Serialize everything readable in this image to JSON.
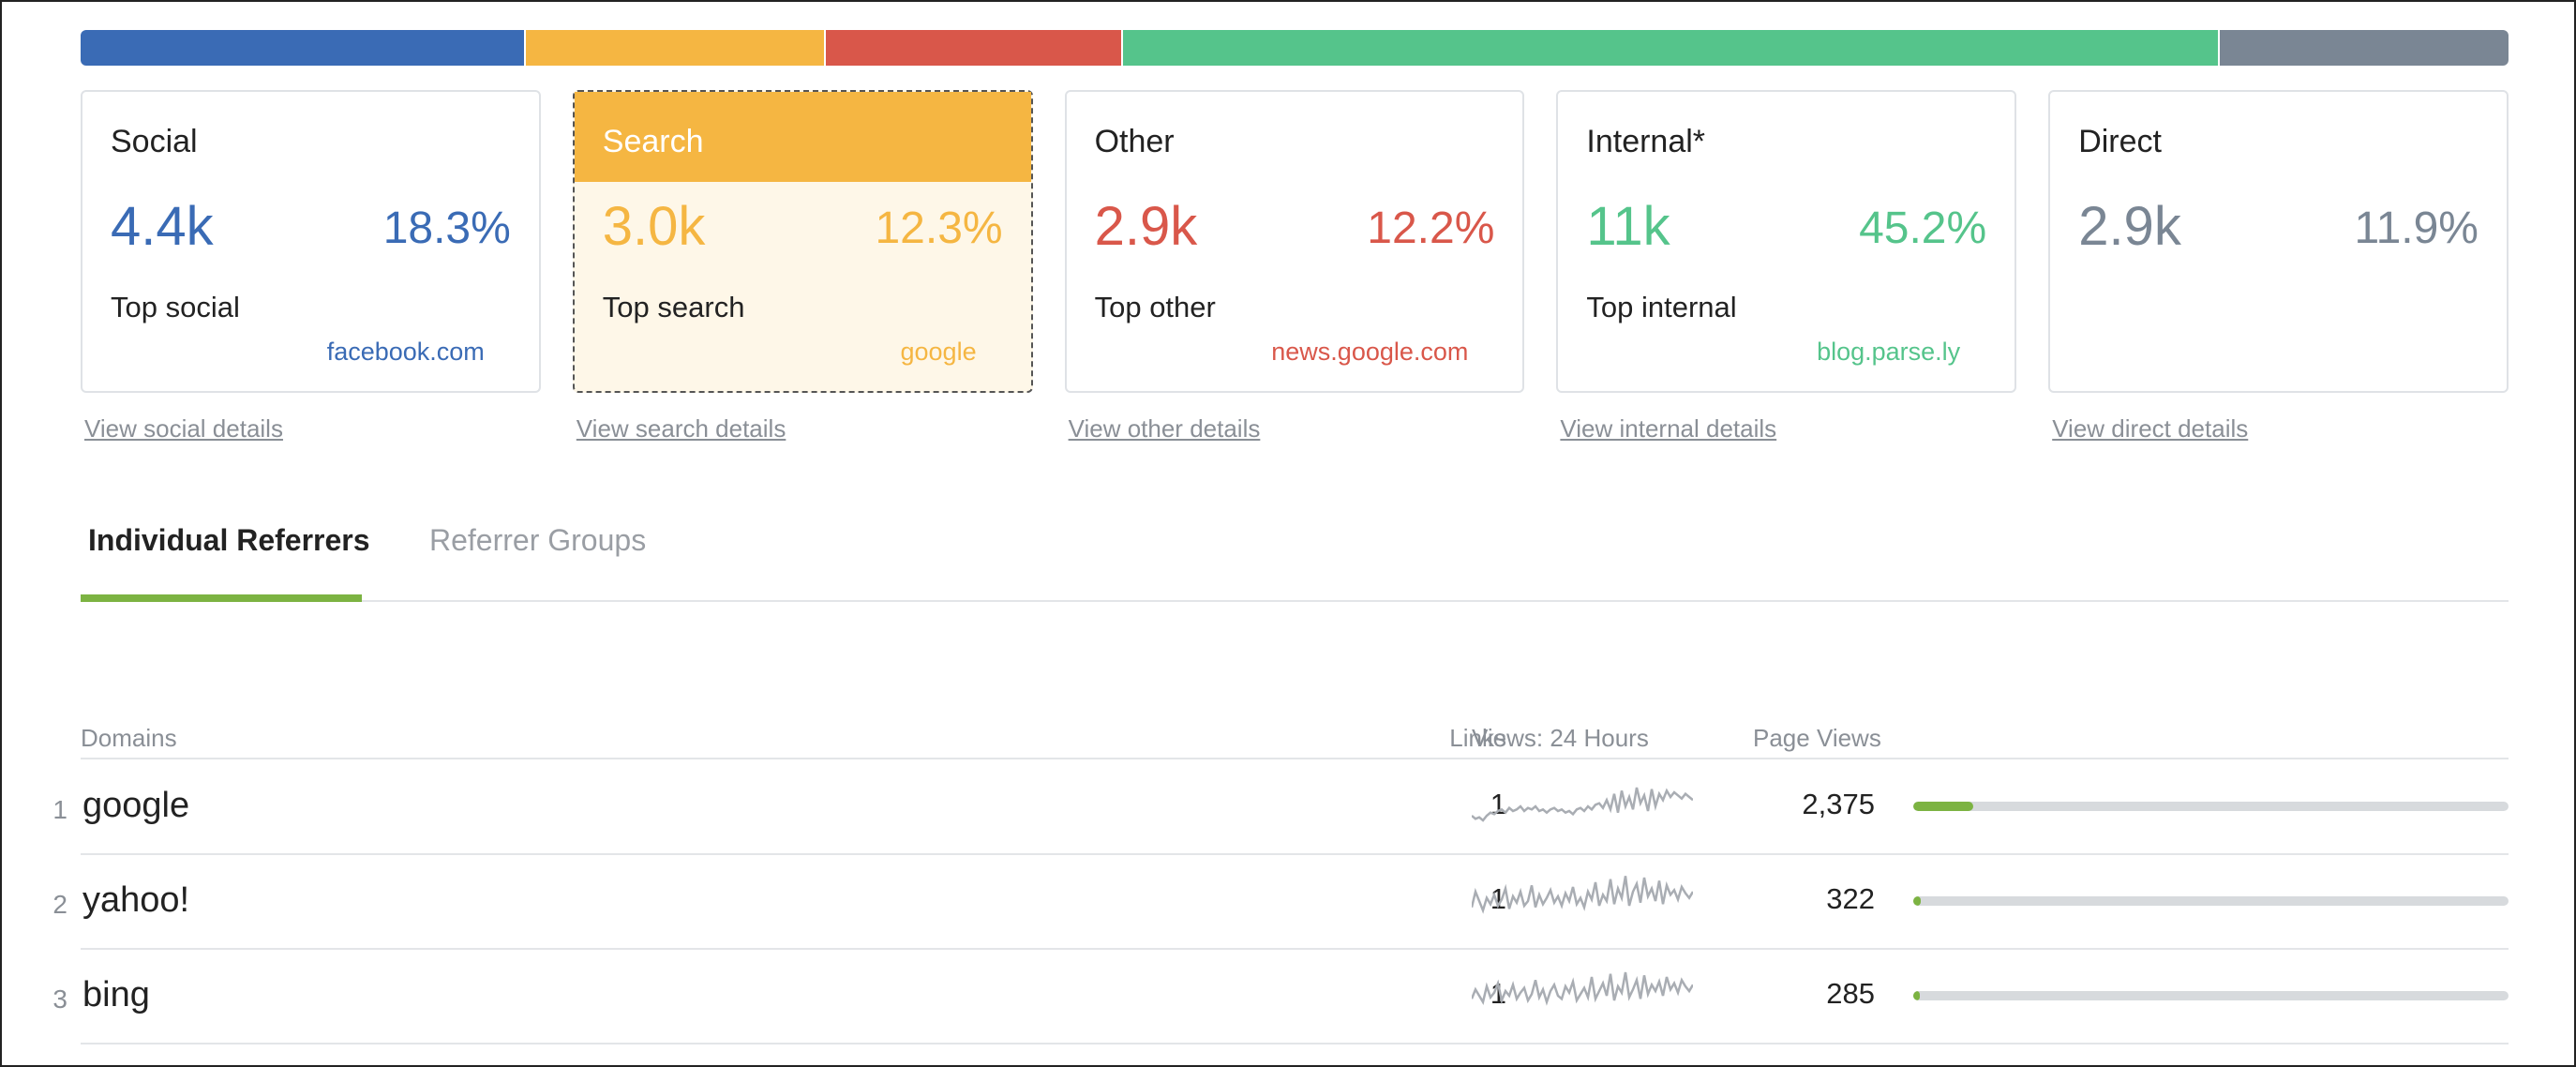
{
  "colors": {
    "social": "#3a6bb5",
    "search": "#f5b642",
    "other": "#d9574a",
    "internal": "#55c48b",
    "direct": "#7a8694",
    "accent_green": "#7cb342"
  },
  "distribution": [
    {
      "key": "social",
      "pct": 18.3
    },
    {
      "key": "search",
      "pct": 12.3
    },
    {
      "key": "other",
      "pct": 12.2
    },
    {
      "key": "internal",
      "pct": 45.2
    },
    {
      "key": "direct",
      "pct": 11.9
    }
  ],
  "cards": [
    {
      "key": "social",
      "title": "Social",
      "value": "4.4k",
      "pct": "18.3%",
      "top_label": "Top social",
      "top_value": "facebook.com",
      "details_link": "View social details"
    },
    {
      "key": "search",
      "title": "Search",
      "value": "3.0k",
      "pct": "12.3%",
      "top_label": "Top search",
      "top_value": "google",
      "details_link": "View search details"
    },
    {
      "key": "other",
      "title": "Other",
      "value": "2.9k",
      "pct": "12.2%",
      "top_label": "Top other",
      "top_value": "news.google.com",
      "details_link": "View other details"
    },
    {
      "key": "internal",
      "title": "Internal*",
      "value": "11k",
      "pct": "45.2%",
      "top_label": "Top internal",
      "top_value": "blog.parse.ly",
      "details_link": "View internal details"
    },
    {
      "key": "direct",
      "title": "Direct",
      "value": "2.9k",
      "pct": "11.9%",
      "top_label": "",
      "top_value": "",
      "details_link": "View direct details"
    }
  ],
  "active_card": "search",
  "tabs": {
    "individual": "Individual Referrers",
    "groups": "Referrer Groups",
    "active": "individual"
  },
  "table": {
    "headers": {
      "domains": "Domains",
      "links": "Links",
      "views24": "Views: 24 Hours",
      "pageviews": "Page Views"
    },
    "rows": [
      {
        "rank": "1",
        "domain": "google",
        "links": "1",
        "pageviews": "2,375",
        "share": 0.1,
        "spark": [
          6,
          4,
          5,
          3,
          6,
          8,
          7,
          9,
          10,
          8,
          11,
          9,
          10,
          12,
          9,
          11,
          10,
          12,
          9,
          10,
          8,
          10,
          11,
          9,
          10,
          8,
          9,
          7,
          10,
          11,
          9,
          12,
          10,
          13,
          14,
          11,
          16,
          10,
          20,
          8,
          22,
          12,
          18,
          10,
          24,
          14,
          19,
          9,
          23,
          12,
          20,
          16,
          22,
          18,
          21,
          19,
          17,
          20,
          18,
          16
        ]
      },
      {
        "rank": "2",
        "domain": "yahoo!",
        "links": "1",
        "pageviews": "322",
        "share": 0.013,
        "spark": [
          8,
          18,
          12,
          6,
          14,
          10,
          16,
          9,
          13,
          20,
          7,
          15,
          11,
          18,
          9,
          12,
          22,
          8,
          16,
          10,
          14,
          19,
          11,
          15,
          9,
          17,
          12,
          21,
          10,
          14,
          8,
          18,
          13,
          24,
          9,
          16,
          12,
          26,
          10,
          20,
          14,
          28,
          9,
          18,
          23,
          11,
          27,
          15,
          20,
          12,
          25,
          10,
          22,
          16,
          19,
          13,
          21,
          17,
          14,
          18
        ]
      },
      {
        "rank": "3",
        "domain": "bing",
        "links": "1",
        "pageviews": "285",
        "share": 0.011,
        "spark": [
          10,
          16,
          12,
          8,
          18,
          11,
          14,
          20,
          9,
          15,
          12,
          19,
          10,
          14,
          17,
          9,
          13,
          22,
          11,
          16,
          8,
          15,
          19,
          12,
          10,
          18,
          14,
          21,
          9,
          13,
          17,
          11,
          24,
          10,
          15,
          20,
          12,
          26,
          9,
          18,
          14,
          27,
          11,
          16,
          22,
          10,
          25,
          13,
          19,
          15,
          21,
          12,
          24,
          16,
          20,
          14,
          22,
          18,
          15,
          19
        ]
      }
    ]
  }
}
